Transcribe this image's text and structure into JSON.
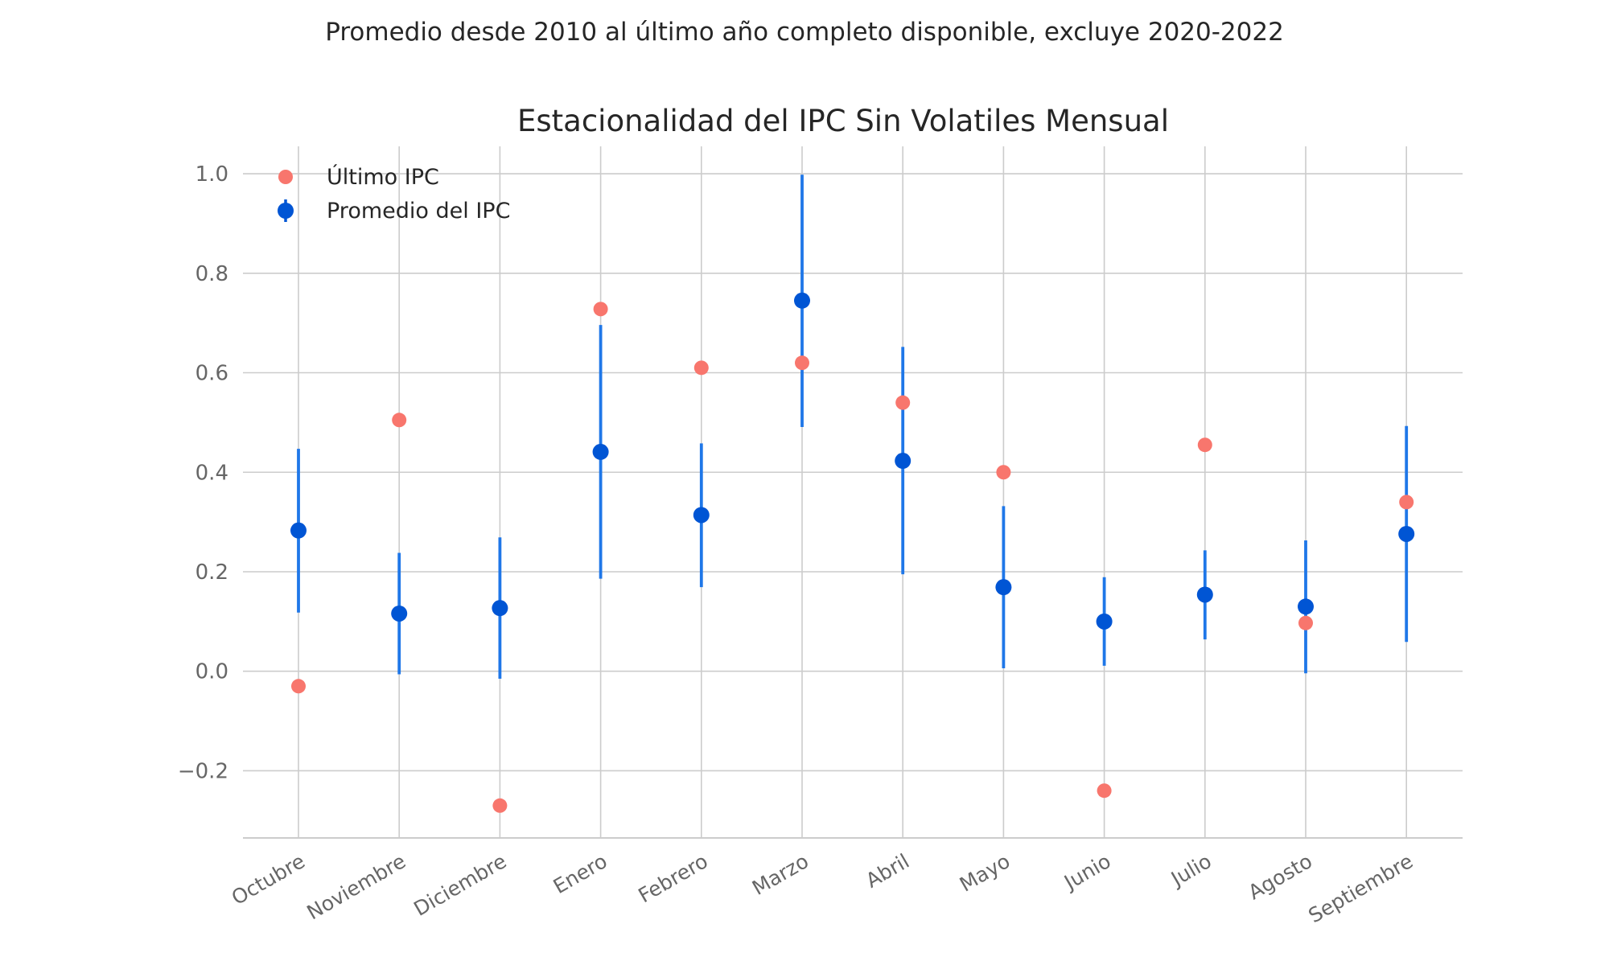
{
  "chart_data": {
    "type": "scatter",
    "suptitle": "Promedio desde 2010 al último año completo disponible, excluye 2020-2022",
    "title": "Estacionalidad del IPC Sin Volatiles Mensual",
    "xlabel": "",
    "ylabel": "",
    "categories": [
      "Octubre",
      "Noviembre",
      "Diciembre",
      "Enero",
      "Febrero",
      "Marzo",
      "Abril",
      "Mayo",
      "Junio",
      "Julio",
      "Agosto",
      "Septiembre"
    ],
    "ylim": [
      -0.335,
      1.055
    ],
    "yticks": [
      {
        "value": 1.0,
        "label": "1.0"
      },
      {
        "value": 0.8,
        "label": "0.8"
      },
      {
        "value": 0.6,
        "label": "0.6"
      },
      {
        "value": 0.4,
        "label": "0.4"
      },
      {
        "value": 0.2,
        "label": "0.2"
      },
      {
        "value": 0.0,
        "label": "0.0"
      },
      {
        "value": -0.2,
        "label": "−0.2"
      }
    ],
    "grid": true,
    "legend_position": "top-left",
    "series": [
      {
        "name": "Último IPC",
        "kind": "points",
        "color": "#f8766d",
        "values": [
          -0.03,
          0.505,
          -0.27,
          0.728,
          0.61,
          0.62,
          0.54,
          0.4,
          -0.24,
          0.455,
          0.097,
          0.34
        ]
      },
      {
        "name": "Promedio del IPC",
        "kind": "points-with-errorbars",
        "color": "#0055d4",
        "errorbar_color": "#1f77e8",
        "values": [
          0.283,
          0.116,
          0.127,
          0.441,
          0.314,
          0.745,
          0.423,
          0.169,
          0.1,
          0.154,
          0.13,
          0.276
        ],
        "lower": [
          0.118,
          -0.006,
          -0.015,
          0.186,
          0.169,
          0.491,
          0.195,
          0.006,
          0.011,
          0.064,
          -0.004,
          0.059
        ],
        "upper": [
          0.447,
          0.238,
          0.269,
          0.696,
          0.458,
          0.998,
          0.652,
          0.332,
          0.189,
          0.243,
          0.263,
          0.493
        ]
      }
    ]
  }
}
